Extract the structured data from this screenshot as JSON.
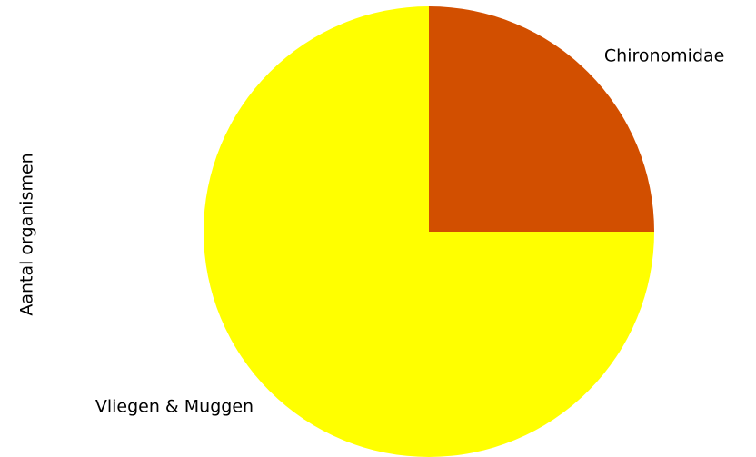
{
  "chart_data": {
    "type": "pie",
    "title": "",
    "ylabel": "Aantal organismen",
    "labels": [
      "Vliegen & Muggen",
      "Chironomidae"
    ],
    "values": [
      75,
      25
    ],
    "colors": [
      "#ffff00",
      "#d24f00"
    ],
    "start_angle_deg": 0,
    "direction": "clockwise",
    "legend": "none"
  }
}
